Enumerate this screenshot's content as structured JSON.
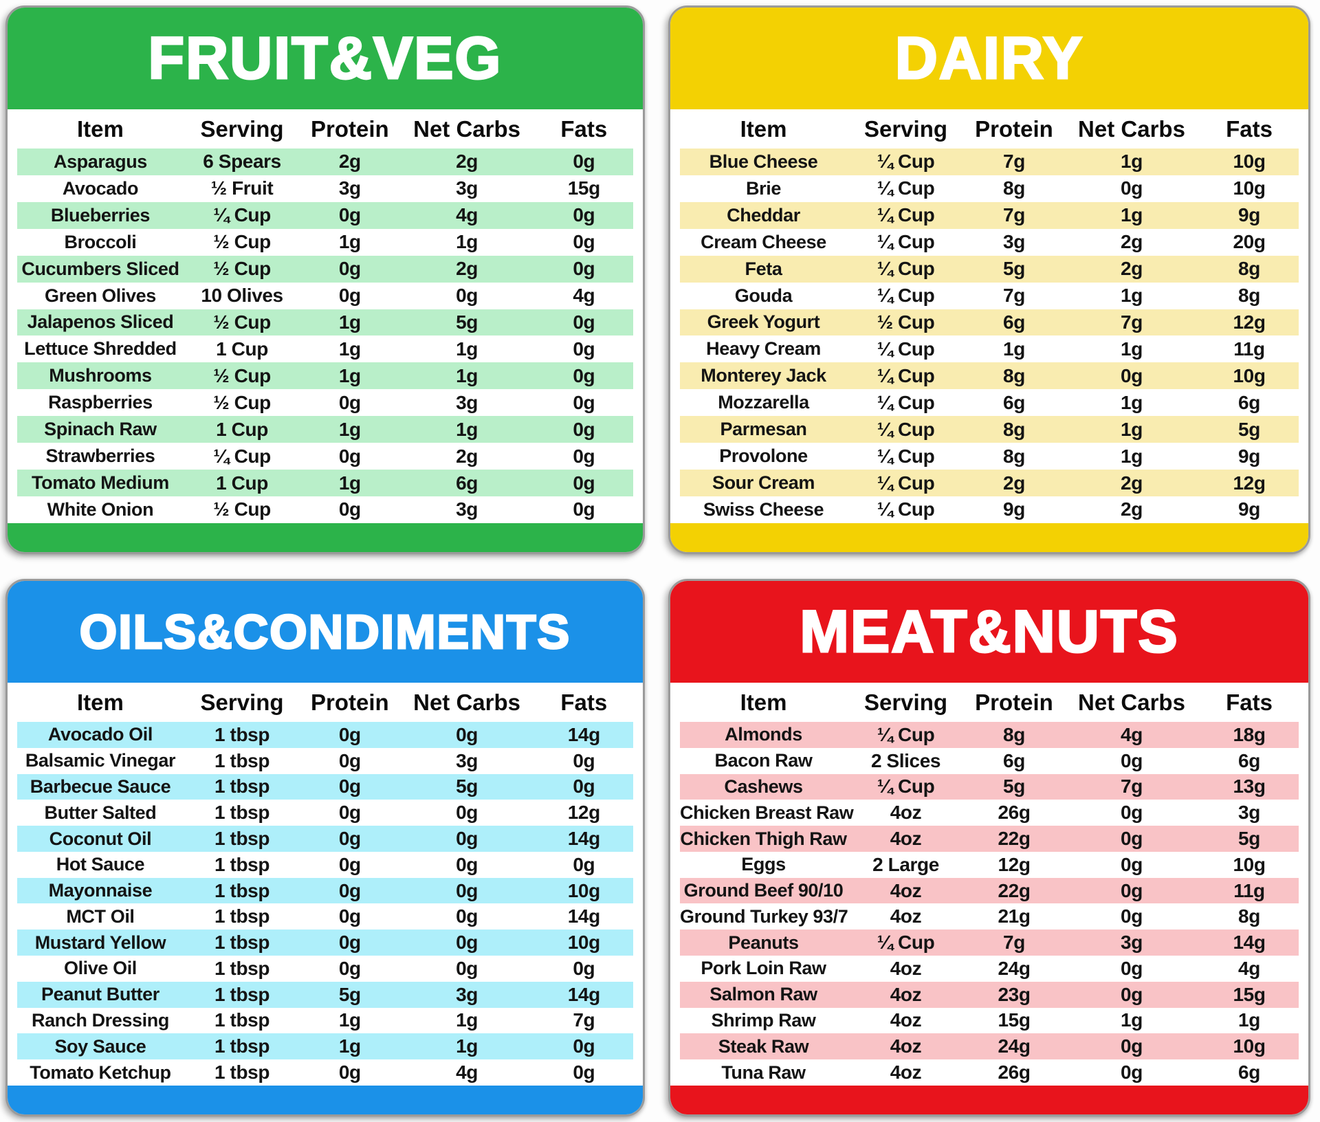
{
  "columns": [
    "Item",
    "Serving",
    "Protein",
    "Net Carbs",
    "Fats"
  ],
  "tables": [
    {
      "id": "fruit-veg",
      "title": "FRUIT&VEG",
      "header_color": "#2cb34a",
      "stripe_color": "#b9efc9",
      "rows": [
        {
          "item": "Asparagus",
          "serving": "6 Spears",
          "protein": "2g",
          "net_carbs": "2g",
          "fats": "0g"
        },
        {
          "item": "Avocado",
          "serving": "½ Fruit",
          "protein": "3g",
          "net_carbs": "3g",
          "fats": "15g"
        },
        {
          "item": "Blueberries",
          "serving": "¼ Cup",
          "protein": "0g",
          "net_carbs": "4g",
          "fats": "0g"
        },
        {
          "item": "Broccoli",
          "serving": "½ Cup",
          "protein": "1g",
          "net_carbs": "1g",
          "fats": "0g"
        },
        {
          "item": "Cucumbers Sliced",
          "serving": "½ Cup",
          "protein": "0g",
          "net_carbs": "2g",
          "fats": "0g"
        },
        {
          "item": "Green Olives",
          "serving": "10 Olives",
          "protein": "0g",
          "net_carbs": "0g",
          "fats": "4g"
        },
        {
          "item": "Jalapenos Sliced",
          "serving": "½ Cup",
          "protein": "1g",
          "net_carbs": "5g",
          "fats": "0g"
        },
        {
          "item": "Lettuce Shredded",
          "serving": "1 Cup",
          "protein": "1g",
          "net_carbs": "1g",
          "fats": "0g"
        },
        {
          "item": "Mushrooms",
          "serving": "½ Cup",
          "protein": "1g",
          "net_carbs": "1g",
          "fats": "0g"
        },
        {
          "item": "Raspberries",
          "serving": "½ Cup",
          "protein": "0g",
          "net_carbs": "3g",
          "fats": "0g"
        },
        {
          "item": "Spinach Raw",
          "serving": "1 Cup",
          "protein": "1g",
          "net_carbs": "1g",
          "fats": "0g"
        },
        {
          "item": "Strawberries",
          "serving": "¼ Cup",
          "protein": "0g",
          "net_carbs": "2g",
          "fats": "0g"
        },
        {
          "item": "Tomato Medium",
          "serving": "1 Cup",
          "protein": "1g",
          "net_carbs": "6g",
          "fats": "0g"
        },
        {
          "item": "White Onion",
          "serving": "½ Cup",
          "protein": "0g",
          "net_carbs": "3g",
          "fats": "0g"
        }
      ]
    },
    {
      "id": "dairy",
      "title": "DAIRY",
      "header_color": "#f3d103",
      "stripe_color": "#f9ecb0",
      "rows": [
        {
          "item": "Blue Cheese",
          "serving": "¼ Cup",
          "protein": "7g",
          "net_carbs": "1g",
          "fats": "10g"
        },
        {
          "item": "Brie",
          "serving": "¼ Cup",
          "protein": "8g",
          "net_carbs": "0g",
          "fats": "10g"
        },
        {
          "item": "Cheddar",
          "serving": "¼ Cup",
          "protein": "7g",
          "net_carbs": "1g",
          "fats": "9g"
        },
        {
          "item": "Cream Cheese",
          "serving": "¼ Cup",
          "protein": "3g",
          "net_carbs": "2g",
          "fats": "20g"
        },
        {
          "item": "Feta",
          "serving": "¼ Cup",
          "protein": "5g",
          "net_carbs": "2g",
          "fats": "8g"
        },
        {
          "item": "Gouda",
          "serving": "¼ Cup",
          "protein": "7g",
          "net_carbs": "1g",
          "fats": "8g"
        },
        {
          "item": "Greek Yogurt",
          "serving": "½ Cup",
          "protein": "6g",
          "net_carbs": "7g",
          "fats": "12g"
        },
        {
          "item": "Heavy Cream",
          "serving": "¼ Cup",
          "protein": "1g",
          "net_carbs": "1g",
          "fats": "11g"
        },
        {
          "item": "Monterey Jack",
          "serving": "¼ Cup",
          "protein": "8g",
          "net_carbs": "0g",
          "fats": "10g"
        },
        {
          "item": "Mozzarella",
          "serving": "¼ Cup",
          "protein": "6g",
          "net_carbs": "1g",
          "fats": "6g"
        },
        {
          "item": "Parmesan",
          "serving": "¼ Cup",
          "protein": "8g",
          "net_carbs": "1g",
          "fats": "5g"
        },
        {
          "item": "Provolone",
          "serving": "¼ Cup",
          "protein": "8g",
          "net_carbs": "1g",
          "fats": "9g"
        },
        {
          "item": "Sour Cream",
          "serving": "¼ Cup",
          "protein": "2g",
          "net_carbs": "2g",
          "fats": "12g"
        },
        {
          "item": "Swiss Cheese",
          "serving": "¼ Cup",
          "protein": "9g",
          "net_carbs": "2g",
          "fats": "9g"
        }
      ]
    },
    {
      "id": "oils-condiments",
      "title": "OILS&CONDIMENTS",
      "header_color": "#1b91e8",
      "stripe_color": "#aeeffa",
      "rows": [
        {
          "item": "Avocado Oil",
          "serving": "1 tbsp",
          "protein": "0g",
          "net_carbs": "0g",
          "fats": "14g"
        },
        {
          "item": "Balsamic Vinegar",
          "serving": "1 tbsp",
          "protein": "0g",
          "net_carbs": "3g",
          "fats": "0g"
        },
        {
          "item": "Barbecue Sauce",
          "serving": "1 tbsp",
          "protein": "0g",
          "net_carbs": "5g",
          "fats": "0g"
        },
        {
          "item": "Butter Salted",
          "serving": "1 tbsp",
          "protein": "0g",
          "net_carbs": "0g",
          "fats": "12g"
        },
        {
          "item": "Coconut Oil",
          "serving": "1 tbsp",
          "protein": "0g",
          "net_carbs": "0g",
          "fats": "14g"
        },
        {
          "item": "Hot Sauce",
          "serving": "1 tbsp",
          "protein": "0g",
          "net_carbs": "0g",
          "fats": "0g"
        },
        {
          "item": "Mayonnaise",
          "serving": "1 tbsp",
          "protein": "0g",
          "net_carbs": "0g",
          "fats": "10g"
        },
        {
          "item": "MCT Oil",
          "serving": "1 tbsp",
          "protein": "0g",
          "net_carbs": "0g",
          "fats": "14g"
        },
        {
          "item": "Mustard Yellow",
          "serving": "1 tbsp",
          "protein": "0g",
          "net_carbs": "0g",
          "fats": "10g"
        },
        {
          "item": "Olive Oil",
          "serving": "1 tbsp",
          "protein": "0g",
          "net_carbs": "0g",
          "fats": "0g"
        },
        {
          "item": "Peanut Butter",
          "serving": "1 tbsp",
          "protein": "5g",
          "net_carbs": "3g",
          "fats": "14g"
        },
        {
          "item": "Ranch Dressing",
          "serving": "1 tbsp",
          "protein": "1g",
          "net_carbs": "1g",
          "fats": "7g"
        },
        {
          "item": "Soy Sauce",
          "serving": "1 tbsp",
          "protein": "1g",
          "net_carbs": "1g",
          "fats": "0g"
        },
        {
          "item": "Tomato Ketchup",
          "serving": "1 tbsp",
          "protein": "0g",
          "net_carbs": "4g",
          "fats": "0g"
        }
      ]
    },
    {
      "id": "meat-nuts",
      "title": "MEAT&NUTS",
      "header_color": "#e8141c",
      "stripe_color": "#f9c3c6",
      "rows": [
        {
          "item": "Almonds",
          "serving": "¼ Cup",
          "protein": "8g",
          "net_carbs": "4g",
          "fats": "18g"
        },
        {
          "item": "Bacon Raw",
          "serving": "2 Slices",
          "protein": "6g",
          "net_carbs": "0g",
          "fats": "6g"
        },
        {
          "item": "Cashews",
          "serving": "¼ Cup",
          "protein": "5g",
          "net_carbs": "7g",
          "fats": "13g"
        },
        {
          "item": "Chicken Breast Raw",
          "serving": "4oz",
          "protein": "26g",
          "net_carbs": "0g",
          "fats": "3g"
        },
        {
          "item": "Chicken Thigh Raw",
          "serving": "4oz",
          "protein": "22g",
          "net_carbs": "0g",
          "fats": "5g"
        },
        {
          "item": "Eggs",
          "serving": "2 Large",
          "protein": "12g",
          "net_carbs": "0g",
          "fats": "10g"
        },
        {
          "item": "Ground Beef 90/10",
          "serving": "4oz",
          "protein": "22g",
          "net_carbs": "0g",
          "fats": "11g"
        },
        {
          "item": "Ground Turkey 93/7",
          "serving": "4oz",
          "protein": "21g",
          "net_carbs": "0g",
          "fats": "8g"
        },
        {
          "item": "Peanuts",
          "serving": "¼ Cup",
          "protein": "7g",
          "net_carbs": "3g",
          "fats": "14g"
        },
        {
          "item": "Pork Loin Raw",
          "serving": "4oz",
          "protein": "24g",
          "net_carbs": "0g",
          "fats": "4g"
        },
        {
          "item": "Salmon Raw",
          "serving": "4oz",
          "protein": "23g",
          "net_carbs": "0g",
          "fats": "15g"
        },
        {
          "item": "Shrimp Raw",
          "serving": "4oz",
          "protein": "15g",
          "net_carbs": "1g",
          "fats": "1g"
        },
        {
          "item": "Steak Raw",
          "serving": "4oz",
          "protein": "24g",
          "net_carbs": "0g",
          "fats": "10g"
        },
        {
          "item": "Tuna Raw",
          "serving": "4oz",
          "protein": "26g",
          "net_carbs": "0g",
          "fats": "6g"
        }
      ]
    }
  ]
}
